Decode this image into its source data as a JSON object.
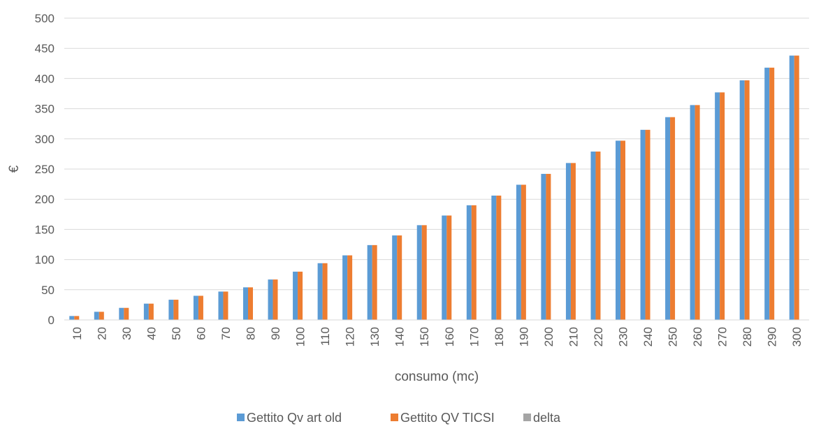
{
  "chart_data": {
    "type": "bar",
    "xlabel": "consumo (mc)",
    "ylabel": "€",
    "ylim": [
      0,
      500
    ],
    "yticks": [
      0,
      50,
      100,
      150,
      200,
      250,
      300,
      350,
      400,
      450,
      500
    ],
    "grid": true,
    "legend_position": "bottom",
    "categories": [
      "10",
      "20",
      "30",
      "40",
      "50",
      "60",
      "70",
      "80",
      "90",
      "100",
      "110",
      "120",
      "130",
      "140",
      "150",
      "160",
      "170",
      "180",
      "190",
      "200",
      "210",
      "220",
      "230",
      "240",
      "250",
      "260",
      "270",
      "280",
      "290",
      "300"
    ],
    "series": [
      {
        "name": "Gettito Qv art old",
        "color": "#5b9bd5",
        "values": [
          6.5,
          13.5,
          20,
          27,
          33.5,
          40,
          47,
          54,
          67,
          80,
          94,
          107,
          124,
          140,
          157,
          173,
          190,
          206,
          224,
          242,
          260,
          279,
          297,
          315,
          336,
          356,
          377,
          397,
          418,
          438
        ]
      },
      {
        "name": "Gettito QV TICSI",
        "color": "#ed7d31",
        "values": [
          6.5,
          13.5,
          20,
          27,
          33.5,
          40,
          47,
          54,
          67,
          80,
          94,
          107,
          124,
          140,
          157,
          173,
          190,
          206,
          224,
          242,
          260,
          279,
          297,
          315,
          336,
          356,
          377,
          397,
          418,
          438
        ]
      },
      {
        "name": "delta",
        "color": "#a5a5a5",
        "values": [
          0,
          0,
          0,
          0,
          0,
          0,
          0,
          0,
          0,
          0,
          0,
          0,
          0,
          0,
          0,
          0,
          0,
          0,
          0,
          0,
          0,
          0,
          0,
          0,
          0,
          0,
          0,
          0,
          0,
          0
        ]
      }
    ]
  }
}
